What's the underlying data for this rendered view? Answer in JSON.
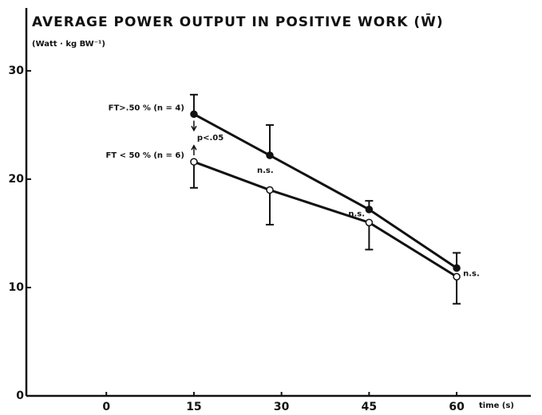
{
  "chart_data": {
    "type": "line",
    "title": "AVERAGE  POWER  OUTPUT  IN  POSITIVE  WORK  (W̄)",
    "subtitle": "(Watt · kg BW⁻¹)",
    "x_label": "time (s)",
    "xlim": [
      -13.7,
      72.7
    ],
    "ylim": [
      0,
      35.8
    ],
    "xticks": [
      0,
      15,
      30,
      45,
      60
    ],
    "yticks": [
      0,
      10,
      20,
      30
    ],
    "series": [
      {
        "name": "FT>.50 % (n = 4)",
        "color": "#111111",
        "marker": "filled",
        "error_direction": "up",
        "x": [
          15,
          28,
          45,
          60
        ],
        "values": [
          26,
          22.2,
          17.2,
          11.8
        ],
        "errors": [
          1.8,
          2.8,
          0.8,
          1.4
        ]
      },
      {
        "name": "FT < 50 % (n = 6)",
        "color": "#111111",
        "marker": "open",
        "error_direction": "down",
        "x": [
          15,
          28,
          45,
          60
        ],
        "values": [
          21.6,
          19,
          16,
          11
        ],
        "errors": [
          2.4,
          3.2,
          2.5,
          2.5
        ]
      }
    ],
    "annotations": [
      "p<.05",
      "n.s.",
      "n.s.",
      "n.s."
    ]
  }
}
